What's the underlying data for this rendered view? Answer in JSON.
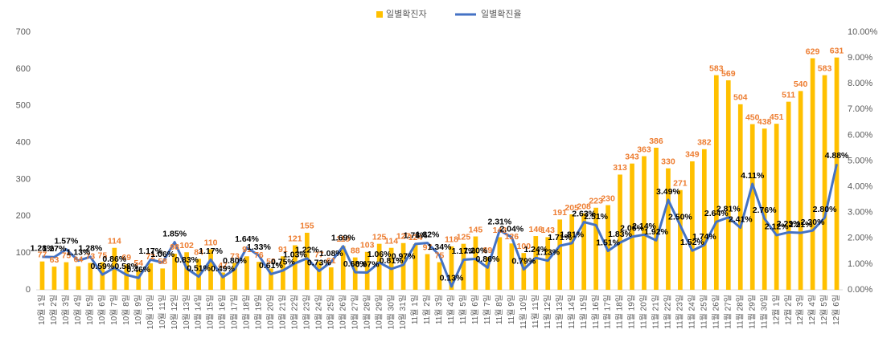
{
  "chart_data": {
    "type": "bar-line",
    "categories": [
      "10월 1일",
      "10월 2일",
      "10월 3일",
      "10월 4일",
      "10월 5일",
      "10월 6일",
      "10월 7일",
      "10월 8일",
      "10월 9일",
      "10월 10일",
      "10월 11일",
      "10월 12일",
      "10월 13일",
      "10월 14일",
      "10월 15일",
      "10월 16일",
      "10월 17일",
      "10월 18일",
      "10월 19일",
      "10월 20일",
      "10월 21일",
      "10월 22일",
      "10월 23일",
      "10월 24일",
      "10월 25일",
      "10월 26일",
      "10월 27일",
      "10월 28일",
      "10월 29일",
      "10월 30일",
      "10월 31일",
      "11월 1일",
      "11월 2일",
      "11월 3일",
      "11월 4일",
      "11월 5일",
      "11월 6일",
      "11월 7일",
      "11월 8일",
      "11월 9일",
      "11월 10일",
      "11월 11일",
      "11월 12일",
      "11월 13일",
      "11월 14일",
      "11월 15일",
      "11월 16일",
      "11월 17일",
      "11월 18일",
      "11월 19일",
      "11월 20일",
      "11월 21일",
      "11월 22일",
      "11월 23일",
      "11월 24일",
      "11월 25일",
      "11월 26일",
      "11월 27일",
      "11월 28일",
      "11월 29일",
      "11월 30일",
      "12월 1일",
      "12월 2일",
      "12월 3일",
      "12월 4일",
      "12월 5일",
      "12월 6일"
    ],
    "series": [
      {
        "name": "일별확진자",
        "color": "#FFC000",
        "label_color": "#ED7D31",
        "values": [
          77,
          63,
          75,
          64,
          73,
          75,
          114,
          69,
          54,
          72,
          58,
          98,
          102,
          84,
          110,
          47,
          73,
          91,
          76,
          58,
          91,
          121,
          155,
          77,
          61,
          119,
          88,
          103,
          125,
          114,
          127,
          124,
          97,
          75,
          118,
          125,
          145,
          89,
          143,
          126,
          100,
          146,
          143,
          191,
          205,
          208,
          223,
          230,
          313,
          343,
          363,
          386,
          330,
          271,
          349,
          382,
          583,
          569,
          504,
          450,
          438,
          451,
          511,
          540,
          629,
          583,
          631
        ]
      },
      {
        "name": "일별확진율",
        "color": "#4472C4",
        "axis": "y2",
        "values": [
          1.28,
          1.27,
          1.57,
          1.13,
          1.28,
          0.59,
          0.86,
          0.58,
          0.46,
          1.17,
          1.06,
          1.85,
          0.83,
          0.51,
          1.17,
          0.49,
          0.8,
          1.64,
          1.33,
          0.61,
          0.75,
          1.03,
          1.22,
          0.73,
          1.08,
          1.69,
          0.68,
          0.67,
          1.06,
          0.81,
          0.97,
          1.78,
          1.82,
          1.34,
          0.13,
          1.17,
          1.2,
          0.86,
          2.31,
          2.04,
          0.79,
          1.24,
          1.13,
          1.71,
          1.81,
          2.63,
          2.51,
          1.51,
          1.83,
          2.06,
          2.14,
          1.92,
          3.49,
          2.5,
          1.52,
          1.74,
          2.64,
          2.81,
          2.41,
          4.11,
          2.76,
          2.12,
          2.23,
          2.21,
          2.3,
          2.8,
          4.88
        ],
        "value_labels": [
          "1.28%",
          "1.27%",
          "1.57%",
          "1.13%",
          "1.28%",
          "0.59%",
          "0.86%",
          "0.58%",
          "0.46%",
          "1.17%",
          "1.06%",
          "1.85%",
          "0.83%",
          "0.51%",
          "1.17%",
          "0.49%",
          "0.80%",
          "1.64%",
          "1.33%",
          "0.61%",
          "0.75%",
          "1.03%",
          "1.22%",
          "0.73%",
          "1.08%",
          "1.69%",
          "0.68%",
          "0.67%",
          "1.06%",
          "0.81%",
          "0.97%",
          "1.78%",
          "1.82%",
          "1.34%",
          "0.13%",
          "1.17%",
          "1.20%",
          "0.86%",
          "2.31%",
          "2.04%",
          "0.79%",
          "1.24%",
          "1.13%",
          "1.71%",
          "1.81%",
          "2.63%",
          "2.51%",
          "1.51%",
          "1.83%",
          "2.06%",
          "2.14%",
          "1.92%",
          "3.49%",
          "2.50%",
          "1.52%",
          "1.74%",
          "2.64%",
          "2.81%",
          "2.41%",
          "4.11%",
          "2.76%",
          "2.12%",
          "2.23%",
          "2.21%",
          "2.30%",
          "2.80%",
          "4.88%"
        ]
      }
    ],
    "ylim": [
      0,
      700
    ],
    "yticks": [
      0,
      100,
      200,
      300,
      400,
      500,
      600,
      700
    ],
    "y2lim": [
      0,
      10
    ],
    "y2ticks": [
      {
        "value": 0,
        "label": "0.00%"
      },
      {
        "value": 1,
        "label": "1.00%"
      },
      {
        "value": 2,
        "label": "2.00%"
      },
      {
        "value": 3,
        "label": "3.00%"
      },
      {
        "value": 4,
        "label": "4.00%"
      },
      {
        "value": 5,
        "label": "5.00%"
      },
      {
        "value": 6,
        "label": "6.00%"
      },
      {
        "value": 7,
        "label": "7.00%"
      },
      {
        "value": 8,
        "label": "8.00%"
      },
      {
        "value": 9,
        "label": "9.00%"
      },
      {
        "value": 10,
        "label": "10.00%"
      }
    ],
    "grid": false,
    "legend": "top"
  }
}
